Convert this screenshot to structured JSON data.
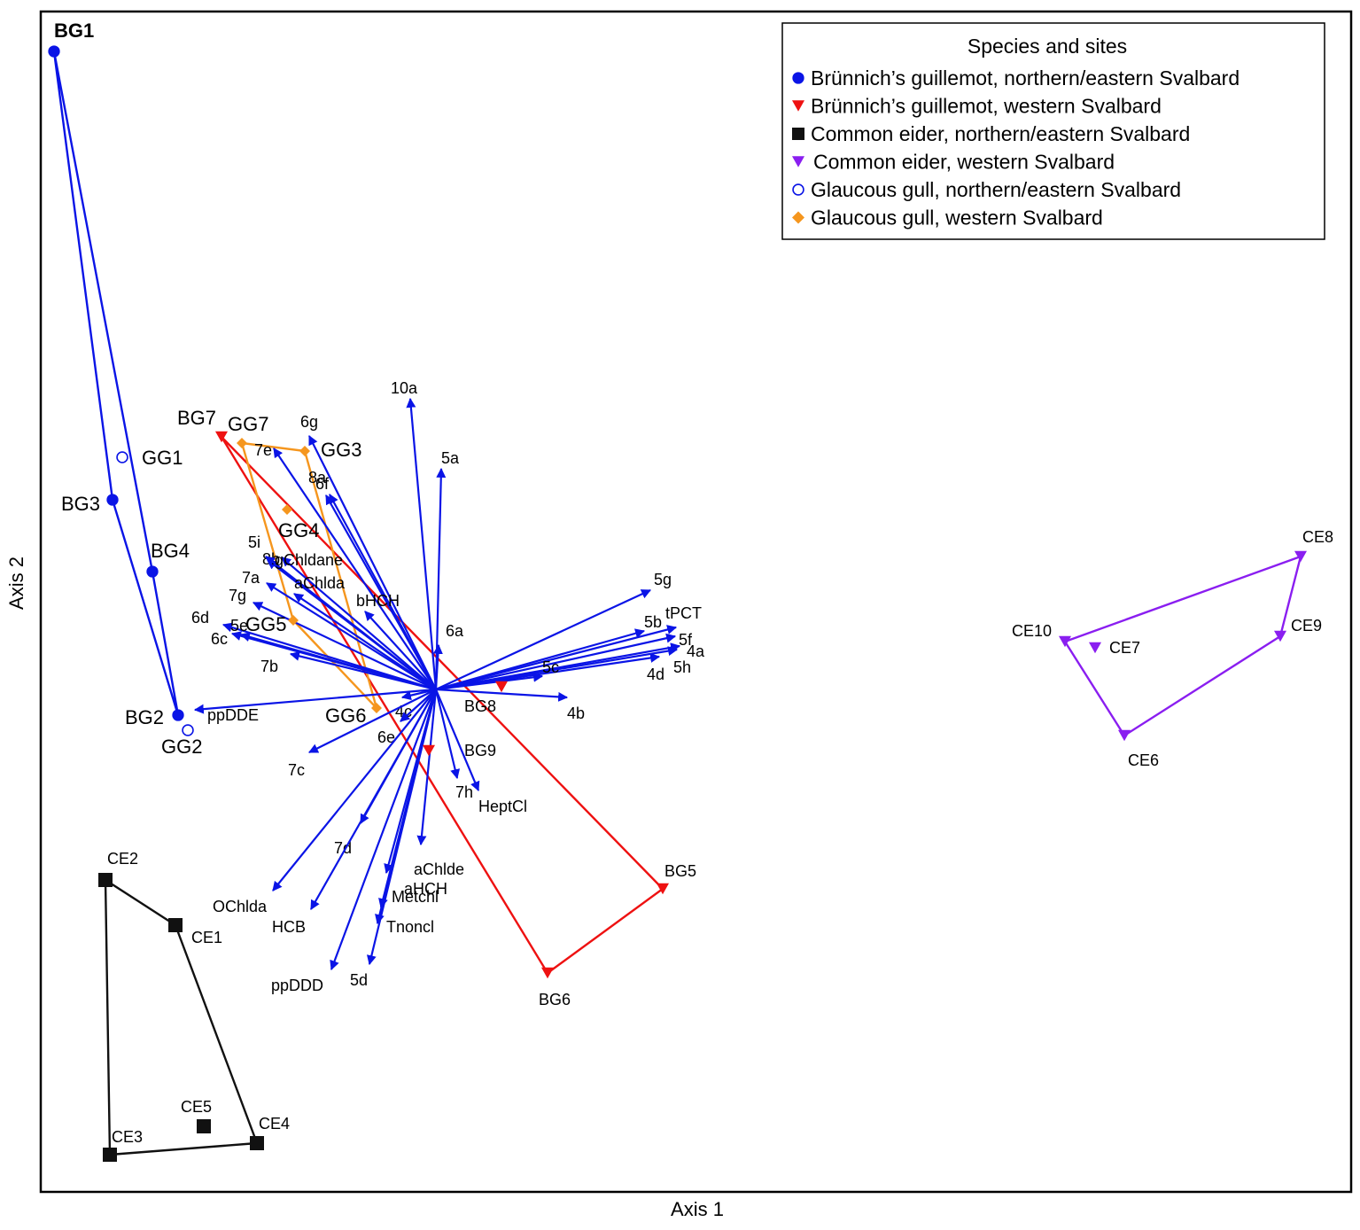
{
  "chart_data": {
    "type": "scatter",
    "subtype": "ordination biplot (sites + variable vectors, convex hulls per group)",
    "title": "",
    "xlabel": "Axis 1",
    "ylabel": "Axis 2",
    "xlim": [
      -4.46,
      10.33
    ],
    "ylim": [
      -5.67,
      7.65
    ],
    "grid": false,
    "legend": {
      "title": "Species and sites",
      "position": "top-right",
      "entries": [
        {
          "group": "BG_NE",
          "label": "Brünnich’s guillemot, northern/eastern Svalbard",
          "marker": "circle-filled",
          "color": "#0a14e6"
        },
        {
          "group": "BG_W",
          "label": "Brünnich’s guillemot, western Svalbard",
          "marker": "triangle-down",
          "color": "#ee1111"
        },
        {
          "group": "CE_NE",
          "label": "Common eider, northern/eastern Svalbard",
          "marker": "square",
          "color": "#111111"
        },
        {
          "group": "CE_W",
          "label": "Common eider, western Svalbard",
          "marker": "triangle-down",
          "color": "#8a1ef0"
        },
        {
          "group": "GG_NE",
          "label": "Glaucous gull, northern/eastern Svalbard",
          "marker": "circle-open",
          "color": "#0a14e6"
        },
        {
          "group": "GG_W",
          "label": "Glaucous gull, western Svalbard",
          "marker": "diamond",
          "color": "#f5961e"
        }
      ]
    },
    "groups": [
      {
        "id": "BG_NE",
        "color": "#0a14e6",
        "marker": "circle-filled",
        "points": [
          {
            "name": "BG1",
            "x": -4.31,
            "y": 7.2
          },
          {
            "name": "BG3",
            "x": -3.65,
            "y": 2.14
          },
          {
            "name": "BG4",
            "x": -3.2,
            "y": 1.33
          },
          {
            "name": "BG2",
            "x": -2.91,
            "y": -0.29
          }
        ],
        "hull": [
          "BG1",
          "BG3",
          "BG2",
          "BG4"
        ]
      },
      {
        "id": "GG_NE",
        "color": "#0a14e6",
        "marker": "circle-open",
        "points": [
          {
            "name": "GG1",
            "x": -3.54,
            "y": 2.62
          },
          {
            "name": "GG2",
            "x": -2.8,
            "y": -0.46
          }
        ],
        "hull": []
      },
      {
        "id": "BG_W",
        "color": "#ee1111",
        "marker": "triangle-down",
        "points": [
          {
            "name": "BG7",
            "x": -2.42,
            "y": 2.85
          },
          {
            "name": "BG8",
            "x": 0.74,
            "y": 0.03
          },
          {
            "name": "BG9",
            "x": -0.08,
            "y": -0.69
          },
          {
            "name": "BG5",
            "x": 2.56,
            "y": -2.25
          },
          {
            "name": "BG6",
            "x": 1.26,
            "y": -3.2
          }
        ],
        "hull": [
          "BG7",
          "BG5",
          "BG6"
        ]
      },
      {
        "id": "GG_W",
        "color": "#f5961e",
        "marker": "diamond",
        "points": [
          {
            "name": "GG7",
            "x": -2.19,
            "y": 2.78
          },
          {
            "name": "GG3",
            "x": -1.48,
            "y": 2.69
          },
          {
            "name": "GG4",
            "x": -1.68,
            "y": 2.03
          },
          {
            "name": "GG5",
            "x": -1.61,
            "y": 0.78
          },
          {
            "name": "GG6",
            "x": -0.67,
            "y": -0.21
          }
        ],
        "hull": [
          "GG7",
          "GG3",
          "GG6",
          "GG5"
        ]
      },
      {
        "id": "CE_NE",
        "color": "#111111",
        "marker": "square",
        "points": [
          {
            "name": "CE2",
            "x": -3.73,
            "y": -2.15
          },
          {
            "name": "CE1",
            "x": -2.94,
            "y": -2.66
          },
          {
            "name": "CE5",
            "x": -2.62,
            "y": -4.93
          },
          {
            "name": "CE4",
            "x": -2.02,
            "y": -5.12
          },
          {
            "name": "CE3",
            "x": -3.68,
            "y": -5.25
          }
        ],
        "hull": [
          "CE2",
          "CE1",
          "CE4",
          "CE3"
        ]
      },
      {
        "id": "CE_W",
        "color": "#8a1ef0",
        "marker": "triangle-down",
        "points": [
          {
            "name": "CE8",
            "x": 9.76,
            "y": 1.5
          },
          {
            "name": "CE10",
            "x": 7.1,
            "y": 0.54
          },
          {
            "name": "CE7",
            "x": 7.44,
            "y": 0.47
          },
          {
            "name": "CE9",
            "x": 9.53,
            "y": 0.6
          },
          {
            "name": "CE6",
            "x": 7.77,
            "y": -0.52
          }
        ],
        "hull": [
          "CE8",
          "CE10",
          "CE6",
          "CE9"
        ]
      }
    ],
    "vectors": {
      "color": "#0a14e6",
      "origin": [
        0,
        0
      ],
      "items": [
        {
          "name": "10a",
          "x": -0.29,
          "y": 3.28
        },
        {
          "name": "5a",
          "x": 0.06,
          "y": 2.49
        },
        {
          "name": "6g",
          "x": -1.43,
          "y": 2.86
        },
        {
          "name": "7e",
          "x": -1.83,
          "y": 2.72
        },
        {
          "name": "8a",
          "x": -1.24,
          "y": 2.19
        },
        {
          "name": "6f",
          "x": -1.2,
          "y": 2.2
        },
        {
          "name": "5i",
          "x": -1.9,
          "y": 1.46
        },
        {
          "name": "8b",
          "x": -1.74,
          "y": 1.49
        },
        {
          "name": "gChldane",
          "x": -1.92,
          "y": 1.5
        },
        {
          "name": "7a",
          "x": -1.91,
          "y": 1.2
        },
        {
          "name": "7g",
          "x": -2.06,
          "y": 0.98
        },
        {
          "name": "aChlda",
          "x": -1.6,
          "y": 1.08
        },
        {
          "name": "bHCH",
          "x": -0.8,
          "y": 0.88
        },
        {
          "name": "6d",
          "x": -2.4,
          "y": 0.73
        },
        {
          "name": "5e",
          "x": -2.2,
          "y": 0.62
        },
        {
          "name": "6c",
          "x": -2.3,
          "y": 0.63
        },
        {
          "name": "7b",
          "x": -1.64,
          "y": 0.4
        },
        {
          "name": "ppDDE",
          "x": -2.72,
          "y": -0.23
        },
        {
          "name": "6a",
          "x": 0.03,
          "y": 0.5
        },
        {
          "name": "4c",
          "x": -0.38,
          "y": -0.09
        },
        {
          "name": "6e",
          "x": -0.4,
          "y": -0.36
        },
        {
          "name": "7c",
          "x": -1.43,
          "y": -0.71
        },
        {
          "name": "5g",
          "x": 2.42,
          "y": 1.12
        },
        {
          "name": "5b",
          "x": 2.35,
          "y": 0.66
        },
        {
          "name": "tPCT",
          "x": 2.71,
          "y": 0.7
        },
        {
          "name": "5f",
          "x": 2.7,
          "y": 0.6
        },
        {
          "name": "4a",
          "x": 2.75,
          "y": 0.49
        },
        {
          "name": "5h",
          "x": 2.72,
          "y": 0.45
        },
        {
          "name": "4d",
          "x": 2.52,
          "y": 0.37
        },
        {
          "name": "5c",
          "x": 1.2,
          "y": 0.15
        },
        {
          "name": "4b",
          "x": 1.48,
          "y": -0.09
        },
        {
          "name": "7h",
          "x": 0.24,
          "y": -1.0
        },
        {
          "name": "HeptCl",
          "x": 0.48,
          "y": -1.14
        },
        {
          "name": "7d",
          "x": -0.85,
          "y": -1.51
        },
        {
          "name": "aChlde",
          "x": -0.17,
          "y": -1.75
        },
        {
          "name": "aHCH",
          "x": -0.56,
          "y": -2.07
        },
        {
          "name": "OChlda",
          "x": -1.84,
          "y": -2.27
        },
        {
          "name": "HCB",
          "x": -1.41,
          "y": -2.48
        },
        {
          "name": "Metchl",
          "x": -0.62,
          "y": -2.46
        },
        {
          "name": "Tnoncl",
          "x": -0.66,
          "y": -2.64
        },
        {
          "name": "ppDDD",
          "x": -1.18,
          "y": -3.16
        },
        {
          "name": "5d",
          "x": -0.75,
          "y": -3.1
        }
      ]
    }
  }
}
